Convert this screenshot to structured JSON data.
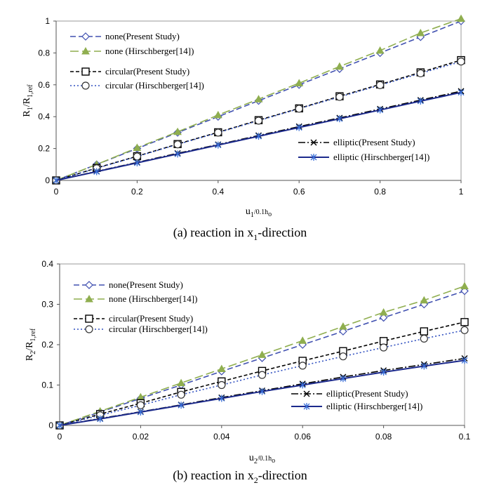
{
  "chart_data": [
    {
      "type": "line",
      "caption": {
        "pre": "(a) reaction in x",
        "sub": "1",
        "post": "-direction"
      },
      "xlabel": {
        "main": "u",
        "sub": "1",
        "post": "/0.1h",
        "sub2": "o"
      },
      "ylabel": {
        "main": "R",
        "sub": "1",
        "mid": "/R",
        "sub2": "1,ref"
      },
      "xlim": [
        0,
        1
      ],
      "ylim": [
        0,
        1
      ],
      "xticks": [
        "0",
        "0.2",
        "0.4",
        "0.6",
        "0.8",
        "1"
      ],
      "yticks": [
        "0",
        "0.2",
        "0.4",
        "0.6",
        "0.8",
        "1"
      ],
      "grid": false,
      "x": [
        0,
        0.1,
        0.2,
        0.3,
        0.4,
        0.5,
        0.6,
        0.7,
        0.8,
        0.9,
        1.0
      ],
      "series": [
        {
          "name": "none(Present Study)",
          "color": "#4050b0",
          "dash": "8,4",
          "marker": "diamond",
          "values": [
            0,
            0.1,
            0.2,
            0.3,
            0.4,
            0.5,
            0.6,
            0.7,
            0.8,
            0.9,
            1.0
          ]
        },
        {
          "name": "none (Hirschberger[14])",
          "color": "#8fae4f",
          "dash": "12,5",
          "marker": "triangle",
          "values": [
            0,
            0.1,
            0.205,
            0.305,
            0.41,
            0.51,
            0.61,
            0.715,
            0.815,
            0.925,
            1.015
          ]
        },
        {
          "name": "circular(Present Study)",
          "color": "#000000",
          "dash": "5,3",
          "marker": "square",
          "values": [
            0,
            0.078,
            0.152,
            0.228,
            0.302,
            0.378,
            0.452,
            0.528,
            0.602,
            0.678,
            0.755
          ]
        },
        {
          "name": "circular (Hirschberger[14])",
          "color": "#3050c0",
          "dash": "2,3",
          "marker": "circle",
          "values": [
            0,
            0.076,
            0.15,
            0.226,
            0.3,
            0.375,
            0.45,
            0.524,
            0.598,
            0.672,
            0.746
          ]
        },
        {
          "name": "elliptic(Present Study)",
          "color": "#000000",
          "dash": "10,3,2,3",
          "marker": "x",
          "values": [
            0,
            0.057,
            0.113,
            0.17,
            0.225,
            0.282,
            0.338,
            0.392,
            0.448,
            0.504,
            0.56
          ]
        },
        {
          "name": "elliptic (Hirschberger[14])",
          "color": "#1c2a8c",
          "dash": "",
          "marker": "star",
          "values": [
            0,
            0.055,
            0.11,
            0.166,
            0.222,
            0.277,
            0.332,
            0.387,
            0.442,
            0.498,
            0.552
          ]
        }
      ]
    },
    {
      "type": "line",
      "caption": {
        "pre": "(b) reaction in x",
        "sub": "2",
        "post": "-direction"
      },
      "xlabel": {
        "main": "u",
        "sub": "2",
        "post": "/0.1h",
        "sub2": "o"
      },
      "ylabel": {
        "main": "R",
        "sub": "2",
        "mid": "/R",
        "sub2": "1,ref"
      },
      "xlim": [
        0,
        0.1
      ],
      "ylim": [
        0,
        0.4
      ],
      "xticks": [
        "0",
        "0.02",
        "0.04",
        "0.06",
        "0.08",
        "0.1"
      ],
      "yticks": [
        "0",
        "0.1",
        "0.2",
        "0.3",
        "0.4"
      ],
      "grid": false,
      "x": [
        0,
        0.01,
        0.02,
        0.03,
        0.04,
        0.05,
        0.06,
        0.07,
        0.08,
        0.09,
        0.1
      ],
      "series": [
        {
          "name": "none(Present Study)",
          "color": "#4050b0",
          "dash": "8,4",
          "marker": "diamond",
          "values": [
            0,
            0.033,
            0.067,
            0.1,
            0.134,
            0.167,
            0.2,
            0.233,
            0.267,
            0.3,
            0.333
          ]
        },
        {
          "name": "none (Hirschberger[14])",
          "color": "#8fae4f",
          "dash": "12,5",
          "marker": "triangle",
          "values": [
            0,
            0.035,
            0.07,
            0.105,
            0.14,
            0.175,
            0.21,
            0.245,
            0.28,
            0.31,
            0.345
          ]
        },
        {
          "name": "circular(Present Study)",
          "color": "#000000",
          "dash": "5,3",
          "marker": "square",
          "values": [
            0,
            0.028,
            0.055,
            0.083,
            0.109,
            0.135,
            0.16,
            0.184,
            0.209,
            0.233,
            0.256
          ]
        },
        {
          "name": "circular (Hirschberger[14])",
          "color": "#3050c0",
          "dash": "2,3",
          "marker": "circle",
          "values": [
            0,
            0.025,
            0.05,
            0.076,
            0.1,
            0.125,
            0.148,
            0.171,
            0.193,
            0.215,
            0.236
          ]
        },
        {
          "name": "elliptic(Present Study)",
          "color": "#000000",
          "dash": "10,3,2,3",
          "marker": "x",
          "values": [
            0,
            0.017,
            0.034,
            0.051,
            0.069,
            0.086,
            0.103,
            0.12,
            0.136,
            0.151,
            0.166
          ]
        },
        {
          "name": "elliptic (Hirschberger[14])",
          "color": "#1c2a8c",
          "dash": "",
          "marker": "star",
          "values": [
            0,
            0.016,
            0.033,
            0.05,
            0.067,
            0.084,
            0.1,
            0.116,
            0.132,
            0.147,
            0.161
          ]
        }
      ]
    }
  ]
}
